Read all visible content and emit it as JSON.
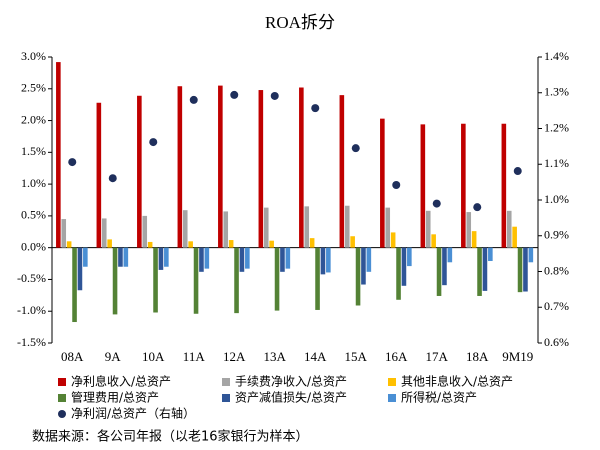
{
  "chart_data": {
    "type": "bar",
    "title": "ROA拆分",
    "categories": [
      "08A",
      "9A",
      "10A",
      "11A",
      "12A",
      "13A",
      "14A",
      "15A",
      "16A",
      "17A",
      "18A",
      "9M19"
    ],
    "series": [
      {
        "name": "净利息收入/总资产",
        "color": "#c00000",
        "values": [
          2.92,
          2.28,
          2.39,
          2.54,
          2.55,
          2.48,
          2.52,
          2.4,
          2.03,
          1.94,
          1.95,
          1.95
        ]
      },
      {
        "name": "手续费净收入/总资产",
        "color": "#a5a5a5",
        "values": [
          0.45,
          0.46,
          0.5,
          0.59,
          0.57,
          0.63,
          0.65,
          0.66,
          0.63,
          0.58,
          0.56,
          0.58
        ]
      },
      {
        "name": "其他非息收入/总资产",
        "color": "#ffc000",
        "values": [
          0.1,
          0.13,
          0.09,
          0.1,
          0.12,
          0.11,
          0.15,
          0.18,
          0.24,
          0.21,
          0.26,
          0.33
        ]
      },
      {
        "name": "管理费用/总资产",
        "color": "#548235",
        "values": [
          -1.17,
          -1.05,
          -1.02,
          -1.04,
          -1.03,
          -0.99,
          -0.98,
          -0.91,
          -0.82,
          -0.76,
          -0.76,
          -0.7
        ]
      },
      {
        "name": "资产减值损失/总资产",
        "color": "#2f5597",
        "values": [
          -0.67,
          -0.3,
          -0.35,
          -0.38,
          -0.38,
          -0.38,
          -0.42,
          -0.58,
          -0.6,
          -0.59,
          -0.68,
          -0.69
        ]
      },
      {
        "name": "所得税/总资产",
        "color": "#4a8fd4",
        "values": [
          -0.3,
          -0.3,
          -0.3,
          -0.33,
          -0.33,
          -0.33,
          -0.39,
          -0.38,
          -0.29,
          -0.23,
          -0.21,
          -0.23
        ]
      },
      {
        "name": "净利润/总资产（右轴）",
        "color": "#1f2f5c",
        "type": "scatter",
        "axis": "y2",
        "values": [
          1.106,
          1.061,
          1.162,
          1.28,
          1.294,
          1.291,
          1.257,
          1.145,
          1.042,
          0.99,
          0.98,
          1.081
        ]
      }
    ],
    "ylim": [
      -1.5,
      3.0
    ],
    "yticks": [
      {
        "value": -1.5,
        "label": "-1.5%"
      },
      {
        "value": -1.0,
        "label": "-1.0%"
      },
      {
        "value": -0.5,
        "label": "-0.5%"
      },
      {
        "value": 0,
        "label": "0.0%"
      },
      {
        "value": 0.5,
        "label": "0.5%"
      },
      {
        "value": 1.0,
        "label": "1.0%"
      },
      {
        "value": 1.5,
        "label": "1.5%"
      },
      {
        "value": 2.0,
        "label": "2.0%"
      },
      {
        "value": 2.5,
        "label": "2.5%"
      },
      {
        "value": 3.0,
        "label": "3.0%"
      }
    ],
    "y2lim": [
      0.6,
      1.4
    ],
    "y2ticks": [
      {
        "value": 0.6,
        "label": "0.6%"
      },
      {
        "value": 0.7,
        "label": "0.7%"
      },
      {
        "value": 0.8,
        "label": "0.8%"
      },
      {
        "value": 0.9,
        "label": "0.9%"
      },
      {
        "value": 1.0,
        "label": "1.0%"
      },
      {
        "value": 1.1,
        "label": "1.1%"
      },
      {
        "value": 1.2,
        "label": "1.2%"
      },
      {
        "value": 1.3,
        "label": "1.3%"
      },
      {
        "value": 1.4,
        "label": "1.4%"
      }
    ],
    "source": "数据来源：各公司年报（以老16家银行为样本）"
  }
}
